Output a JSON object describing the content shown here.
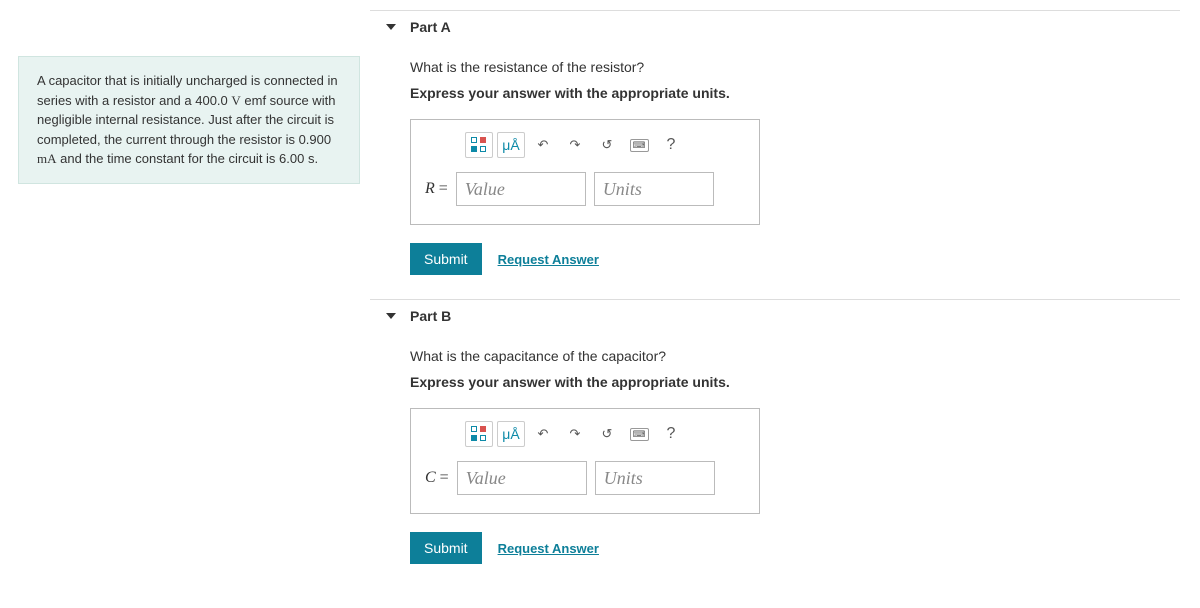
{
  "problem": {
    "text_parts": [
      "A capacitor that is initially uncharged is connected in series with a resistor and a 400.0 ",
      "V",
      " emf source with negligible internal resistance. Just after the circuit is completed, the current through the resistor is 0.900 ",
      "mA",
      " and the time constant for the circuit is 6.00 s."
    ]
  },
  "toolbar": {
    "units_symbol": "μÅ",
    "undo": "↶",
    "redo": "↷",
    "reset": "↺",
    "help": "?"
  },
  "partA": {
    "title": "Part A",
    "question": "What is the resistance of the resistor?",
    "instruction": "Express your answer with the appropriate units.",
    "variable": "R",
    "value_placeholder": "Value",
    "units_placeholder": "Units",
    "submit": "Submit",
    "request": "Request Answer"
  },
  "partB": {
    "title": "Part B",
    "question": "What is the capacitance of the capacitor?",
    "instruction": "Express your answer with the appropriate units.",
    "variable": "C",
    "value_placeholder": "Value",
    "units_placeholder": "Units",
    "submit": "Submit",
    "request": "Request Answer"
  },
  "colors": {
    "accent": "#0d7f99",
    "problem_bg": "#e8f3f1"
  }
}
